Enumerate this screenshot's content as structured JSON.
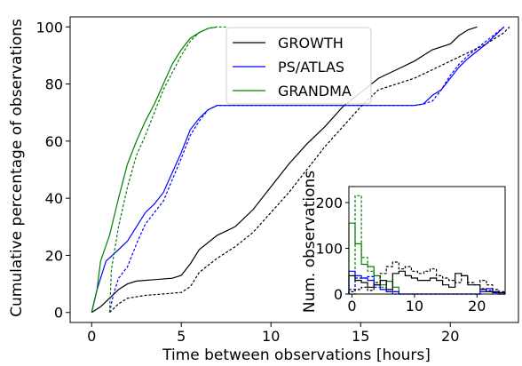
{
  "chart_data": [
    {
      "type": "line",
      "xlabel": "Time between observations [hours]",
      "ylabel": "Cumulative percentage of observations",
      "xlim": [
        -1.2,
        23.8
      ],
      "ylim": [
        -3.5,
        103.5
      ],
      "xticks": [
        0,
        5,
        10,
        15,
        20
      ],
      "yticks": [
        0,
        20,
        40,
        60,
        80,
        100
      ],
      "legend_position": "top-center",
      "series": [
        {
          "name": "GROWTH",
          "color": "#000000",
          "style": "solid",
          "points": [
            [
              0,
              0
            ],
            [
              0.5,
              2
            ],
            [
              1,
              5
            ],
            [
              1.5,
              8
            ],
            [
              2,
              10
            ],
            [
              2.5,
              11
            ],
            [
              3.5,
              11.5
            ],
            [
              4.5,
              12
            ],
            [
              5,
              13
            ],
            [
              5.5,
              17
            ],
            [
              6,
              22
            ],
            [
              7,
              27
            ],
            [
              8,
              30
            ],
            [
              9,
              36
            ],
            [
              10,
              44
            ],
            [
              11,
              52
            ],
            [
              12,
              59
            ],
            [
              13,
              65
            ],
            [
              14,
              72
            ],
            [
              15,
              77
            ],
            [
              16,
              82
            ],
            [
              17,
              85
            ],
            [
              18,
              88
            ],
            [
              19,
              92
            ],
            [
              20,
              94
            ],
            [
              20.5,
              97
            ],
            [
              21,
              99
            ],
            [
              21.5,
              100
            ]
          ]
        },
        {
          "name": "",
          "color": "#000000",
          "style": "dashed",
          "points": [
            [
              1,
              0
            ],
            [
              1.5,
              3
            ],
            [
              2,
              5
            ],
            [
              3,
              6
            ],
            [
              4,
              6.5
            ],
            [
              5,
              7
            ],
            [
              5.5,
              9
            ],
            [
              6,
              14
            ],
            [
              7,
              19
            ],
            [
              8,
              23
            ],
            [
              9,
              28
            ],
            [
              10,
              35
            ],
            [
              11,
              42
            ],
            [
              12,
              50
            ],
            [
              13,
              58
            ],
            [
              14,
              65
            ],
            [
              15,
              72
            ],
            [
              16,
              78
            ],
            [
              17,
              80
            ],
            [
              18,
              82
            ],
            [
              19,
              85
            ],
            [
              20,
              88
            ],
            [
              21,
              91
            ],
            [
              22,
              94
            ],
            [
              23,
              98
            ],
            [
              23.3,
              100
            ]
          ]
        },
        {
          "name": "PS/ATLAS",
          "color": "#0000ff",
          "style": "solid",
          "points": [
            [
              0,
              0
            ],
            [
              0.3,
              8
            ],
            [
              0.8,
              18
            ],
            [
              1.5,
              22
            ],
            [
              2,
              25
            ],
            [
              2.5,
              30
            ],
            [
              3,
              35
            ],
            [
              3.5,
              38
            ],
            [
              4,
              42
            ],
            [
              5,
              56
            ],
            [
              5.5,
              64
            ],
            [
              6,
              68
            ],
            [
              6.5,
              71
            ],
            [
              7,
              72.5
            ],
            [
              11,
              72.5
            ],
            [
              15,
              72.5
            ],
            [
              18,
              72.5
            ],
            [
              18.5,
              73
            ],
            [
              19,
              76
            ],
            [
              19.5,
              78
            ],
            [
              20,
              82
            ],
            [
              20.5,
              86
            ],
            [
              21,
              89
            ],
            [
              22,
              94
            ],
            [
              23,
              100
            ]
          ]
        },
        {
          "name": "",
          "color": "#0000ff",
          "style": "dashed",
          "points": [
            [
              1,
              0
            ],
            [
              1.2,
              6
            ],
            [
              1.5,
              12
            ],
            [
              2,
              16
            ],
            [
              2.5,
              24
            ],
            [
              3,
              31
            ],
            [
              3.5,
              35
            ],
            [
              4,
              39
            ],
            [
              5,
              54
            ],
            [
              5.5,
              62
            ],
            [
              6,
              67
            ],
            [
              6.5,
              71
            ],
            [
              7,
              72.5
            ],
            [
              11,
              72.5
            ],
            [
              15,
              72.5
            ],
            [
              18,
              72.5
            ],
            [
              18.5,
              73
            ],
            [
              19,
              74
            ],
            [
              19.5,
              78
            ],
            [
              20,
              83
            ],
            [
              20.5,
              87
            ],
            [
              21,
              90
            ],
            [
              22,
              95
            ],
            [
              23,
              100
            ]
          ]
        },
        {
          "name": "GRANDMA",
          "color": "#008000",
          "style": "solid",
          "points": [
            [
              0,
              0
            ],
            [
              0.3,
              8
            ],
            [
              0.5,
              18
            ],
            [
              1,
              27
            ],
            [
              1.5,
              40
            ],
            [
              2,
              52
            ],
            [
              2.5,
              60
            ],
            [
              3,
              67
            ],
            [
              3.5,
              73
            ],
            [
              4,
              80
            ],
            [
              4.5,
              87
            ],
            [
              5,
              92
            ],
            [
              5.5,
              96
            ],
            [
              6,
              98
            ],
            [
              6.5,
              99.5
            ],
            [
              7,
              100
            ]
          ]
        },
        {
          "name": "",
          "color": "#008000",
          "style": "dashed",
          "points": [
            [
              1,
              0
            ],
            [
              1.1,
              15
            ],
            [
              1.5,
              30
            ],
            [
              2,
              44
            ],
            [
              2.5,
              55
            ],
            [
              3,
              62
            ],
            [
              3.5,
              70
            ],
            [
              4,
              78
            ],
            [
              4.5,
              84
            ],
            [
              5,
              90
            ],
            [
              5.5,
              95
            ],
            [
              6,
              98
            ],
            [
              6.5,
              99.5
            ],
            [
              7,
              100
            ],
            [
              7.5,
              100
            ]
          ]
        }
      ]
    },
    {
      "type": "histogram",
      "inset": true,
      "ylabel": "Num. observations",
      "xlim": [
        -0.5,
        24.5
      ],
      "ylim": [
        0,
        235
      ],
      "xticks": [
        0,
        10,
        20
      ],
      "yticks": [
        0,
        100,
        200
      ],
      "bin_width": 1,
      "series": [
        {
          "color": "#008000",
          "style": "solid",
          "values": [
            155,
            110,
            65,
            60,
            40,
            20,
            28,
            15
          ]
        },
        {
          "color": "#008000",
          "style": "dashed",
          "values": [
            0,
            215,
            80,
            50,
            20,
            15,
            10,
            5
          ]
        },
        {
          "color": "#0000ff",
          "style": "solid",
          "values": [
            50,
            40,
            35,
            30,
            20,
            10,
            5,
            5,
            0,
            0,
            0,
            0,
            0,
            0,
            0,
            0,
            0,
            0,
            0,
            0,
            0,
            5,
            12,
            3,
            0
          ]
        },
        {
          "color": "#0000ff",
          "style": "dashed",
          "values": [
            10,
            35,
            35,
            38,
            15,
            10,
            5,
            0,
            0,
            0,
            0,
            0,
            0,
            0,
            0,
            0,
            0,
            0,
            0,
            0,
            0,
            12,
            8,
            3,
            0
          ]
        },
        {
          "color": "#000000",
          "style": "solid",
          "values": [
            40,
            30,
            25,
            15,
            20,
            30,
            10,
            45,
            50,
            40,
            35,
            30,
            30,
            35,
            30,
            20,
            15,
            45,
            40,
            20,
            20,
            10,
            5,
            5,
            3
          ]
        },
        {
          "color": "#000000",
          "style": "dashed",
          "values": [
            5,
            10,
            15,
            8,
            25,
            45,
            60,
            70,
            55,
            60,
            50,
            45,
            50,
            55,
            40,
            35,
            30,
            25,
            40,
            25,
            20,
            30,
            20,
            10,
            5
          ]
        }
      ]
    }
  ]
}
